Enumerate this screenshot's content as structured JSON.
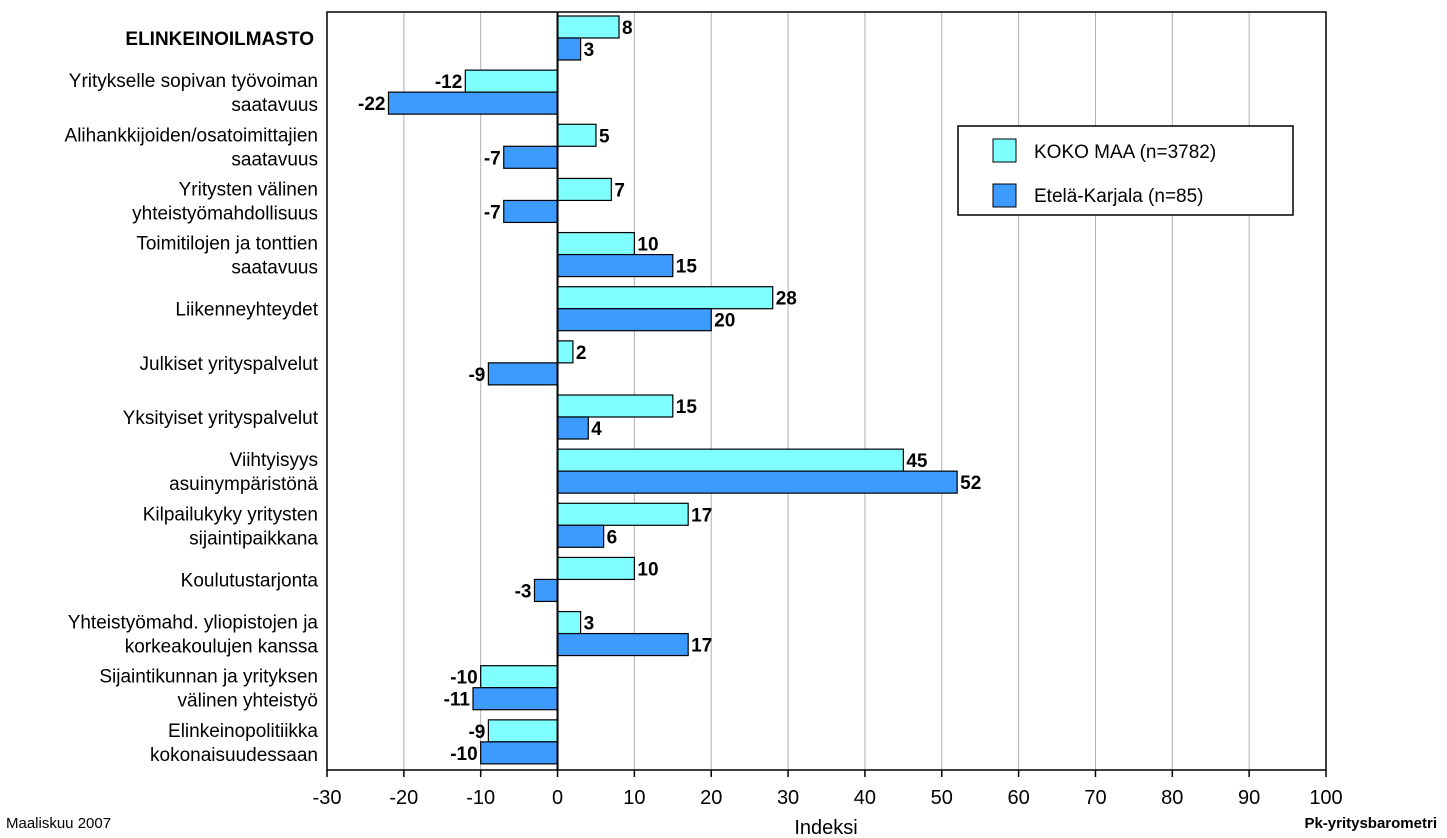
{
  "chart_data": {
    "type": "bar",
    "orientation": "horizontal",
    "section_header": "ELINKEINOILMASTO",
    "categories": [
      [
        "Yritykselle sopivan työvoiman",
        "saatavuus"
      ],
      [
        "Alihankkijoiden/osatoimittajien",
        "saatavuus"
      ],
      [
        "Yritysten välinen",
        "yhteistyömahdollisuus"
      ],
      [
        "Toimitilojen ja tonttien",
        "saatavuus"
      ],
      [
        "Liikenneyhteydet"
      ],
      [
        "Julkiset yrityspalvelut"
      ],
      [
        "Yksityiset yrityspalvelut"
      ],
      [
        "Viihtyisyys",
        "asuinympäristönä"
      ],
      [
        "Kilpailukyky yritysten",
        "sijaintipaikkana"
      ],
      [
        "Koulutustarjonta"
      ],
      [
        "Yhteistyömahd. yliopistojen ja",
        "korkeakoulujen kanssa"
      ],
      [
        "Sijaintikunnan ja yrityksen",
        "välinen yhteistyö"
      ],
      [
        "Elinkeinopolitiikka",
        "kokonaisuudessaan"
      ]
    ],
    "series": [
      {
        "name": "KOKO MAA (n=3782)",
        "color": "#7fffff",
        "header_value": 8,
        "values": [
          -12,
          5,
          7,
          10,
          28,
          2,
          15,
          45,
          17,
          10,
          3,
          -10,
          -9
        ]
      },
      {
        "name": "Etelä-Karjala (n=85)",
        "color": "#3d9bff",
        "header_value": 3,
        "values": [
          -22,
          -7,
          -7,
          15,
          20,
          -9,
          4,
          52,
          6,
          -3,
          17,
          -11,
          -10
        ]
      }
    ],
    "xlim": [
      -30,
      100
    ],
    "xticks": [
      -30,
      -20,
      -10,
      0,
      10,
      20,
      30,
      40,
      50,
      60,
      70,
      80,
      90,
      100
    ],
    "xlabel": "Indeksi",
    "grid": true,
    "legend_position": "top-right"
  },
  "footer": {
    "left": "Maaliskuu 2007",
    "right": "Pk-yritysbarometri"
  }
}
